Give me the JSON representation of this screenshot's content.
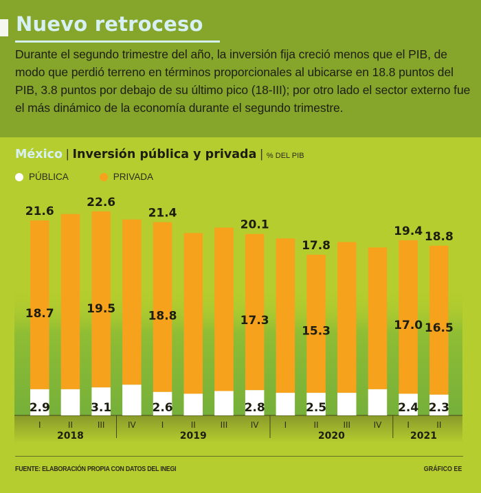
{
  "header": {
    "title": "Nuevo retroceso",
    "intro": "Durante el segundo trimestre del año, la inversión fija creció menos que el PIB, de modo que perdió terreno en términos proporcionales al ubicarse en 18.8 puntos del PIB, 3.8 puntos por debajo de su último pico (18-III); por otro lado el sector externo fue el más dinámico de la economía durante el segundo trimestre."
  },
  "chart_header": {
    "country": "México",
    "separator": "|",
    "title": "Inversión pública y privada",
    "unit": "% DEL PIB"
  },
  "legend": [
    {
      "label": "PÚBLICA",
      "color": "#ffffff"
    },
    {
      "label": "PRIVADA",
      "color": "#f7a21d"
    }
  ],
  "chart_data": {
    "type": "bar",
    "stacked": true,
    "title": "México | Inversión pública y privada",
    "ylabel": "% DEL PIB",
    "xlabel": "",
    "ylim": [
      0,
      23
    ],
    "grid": false,
    "legend_position": "top-left",
    "categories": [
      "I",
      "II",
      "III",
      "IV",
      "I",
      "II",
      "III",
      "IV",
      "I",
      "II",
      "III",
      "IV",
      "I",
      "II"
    ],
    "years": [
      {
        "label": "2018",
        "start": 0,
        "end": 3
      },
      {
        "label": "2019",
        "start": 3,
        "end": 8
      },
      {
        "label": "2020",
        "start": 8,
        "end": 12
      },
      {
        "label": "2021",
        "start": 12,
        "end": 14
      }
    ],
    "year_label_positions": [
      1,
      5,
      9.5,
      12.5
    ],
    "series": [
      {
        "name": "PÚBLICA",
        "color": "#ffffff",
        "values": [
          2.9,
          2.9,
          3.1,
          3.4,
          2.6,
          2.4,
          2.7,
          2.8,
          2.5,
          2.5,
          2.5,
          2.9,
          2.4,
          2.3
        ],
        "labels": [
          "2.9",
          "",
          "3.1",
          "",
          "2.6",
          "",
          "",
          "2.8",
          "",
          "2.5",
          "",
          "",
          "2.4",
          "2.3"
        ]
      },
      {
        "name": "PRIVADA",
        "color": "#f7a21d",
        "values": [
          18.7,
          19.4,
          19.5,
          18.3,
          18.8,
          17.8,
          18.1,
          17.3,
          17.1,
          15.3,
          16.7,
          15.7,
          17.0,
          16.5
        ],
        "labels": [
          "18.7",
          "",
          "19.5",
          "",
          "18.8",
          "",
          "",
          "17.3",
          "",
          "15.3",
          "",
          "",
          "17.0",
          "16.5"
        ]
      }
    ],
    "totals": [
      21.6,
      22.3,
      22.6,
      21.7,
      21.4,
      20.2,
      20.8,
      20.1,
      19.6,
      17.8,
      19.2,
      18.6,
      19.4,
      18.8
    ],
    "total_labels": [
      "21.6",
      "",
      "22.6",
      "",
      "21.4",
      "",
      "",
      "20.1",
      "",
      "17.8",
      "",
      "",
      "19.4",
      "18.8"
    ]
  },
  "footer": {
    "source": "FUENTE: ELABORACIÓN PROPIA CON DATOS DEL INEGI",
    "credit": "GRÁFICO EE"
  }
}
